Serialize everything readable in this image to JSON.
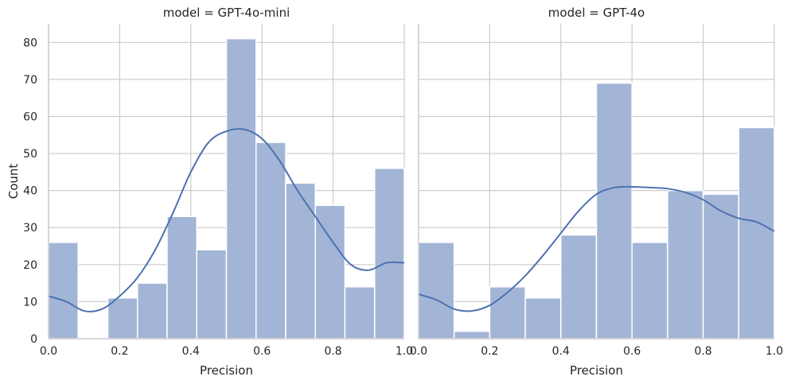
{
  "chart_data": [
    {
      "type": "bar",
      "title": "model = GPT-4o-mini",
      "xlabel": "Precision",
      "ylabel": "Count",
      "xlim": [
        0,
        1.0
      ],
      "ylim": [
        0,
        85
      ],
      "xticks": [
        "0.0",
        "0.2",
        "0.4",
        "0.6",
        "0.8",
        "1.0"
      ],
      "yticks": [
        "0",
        "10",
        "20",
        "30",
        "40",
        "50",
        "60",
        "70",
        "80"
      ],
      "grid": true,
      "bar_color": "#a3b5d6",
      "line_color": "#4c72b0",
      "bins": [
        {
          "x0": 0.0,
          "x1": 0.0833,
          "count": 26
        },
        {
          "x0": 0.0833,
          "x1": 0.1667,
          "count": 0
        },
        {
          "x0": 0.1667,
          "x1": 0.25,
          "count": 11
        },
        {
          "x0": 0.25,
          "x1": 0.3333,
          "count": 15
        },
        {
          "x0": 0.3333,
          "x1": 0.4167,
          "count": 33
        },
        {
          "x0": 0.4167,
          "x1": 0.5,
          "count": 24
        },
        {
          "x0": 0.5,
          "x1": 0.5833,
          "count": 81
        },
        {
          "x0": 0.5833,
          "x1": 0.6667,
          "count": 53
        },
        {
          "x0": 0.6667,
          "x1": 0.75,
          "count": 42
        },
        {
          "x0": 0.75,
          "x1": 0.8333,
          "count": 36
        },
        {
          "x0": 0.8333,
          "x1": 0.9167,
          "count": 14
        },
        {
          "x0": 0.9167,
          "x1": 1.0,
          "count": 46
        }
      ],
      "kde": {
        "x": [
          0.0,
          0.05,
          0.1,
          0.15,
          0.2,
          0.25,
          0.3,
          0.35,
          0.4,
          0.45,
          0.5,
          0.55,
          0.6,
          0.65,
          0.7,
          0.75,
          0.8,
          0.85,
          0.9,
          0.95,
          1.0
        ],
        "y": [
          11.5,
          10,
          7.5,
          8,
          11.5,
          16.5,
          24,
          34,
          45,
          53,
          56,
          56.5,
          54,
          48,
          40,
          33,
          26,
          20,
          18.5,
          20.5,
          20.5
        ]
      }
    },
    {
      "type": "bar",
      "title": "model = GPT-4o",
      "xlabel": "Precision",
      "ylabel": "",
      "xlim": [
        0,
        1.0
      ],
      "ylim": [
        0,
        85
      ],
      "xticks": [
        "0.0",
        "0.2",
        "0.4",
        "0.6",
        "0.8",
        "1.0"
      ],
      "yticks": [],
      "grid": true,
      "bar_color": "#a3b5d6",
      "line_color": "#4c72b0",
      "bins": [
        {
          "x0": 0.0,
          "x1": 0.1,
          "count": 26
        },
        {
          "x0": 0.1,
          "x1": 0.2,
          "count": 2
        },
        {
          "x0": 0.2,
          "x1": 0.3,
          "count": 14
        },
        {
          "x0": 0.3,
          "x1": 0.4,
          "count": 11
        },
        {
          "x0": 0.4,
          "x1": 0.5,
          "count": 28
        },
        {
          "x0": 0.5,
          "x1": 0.6,
          "count": 69
        },
        {
          "x0": 0.6,
          "x1": 0.7,
          "count": 26
        },
        {
          "x0": 0.7,
          "x1": 0.8,
          "count": 40
        },
        {
          "x0": 0.8,
          "x1": 0.9,
          "count": 39
        },
        {
          "x0": 0.9,
          "x1": 1.0,
          "count": 57
        }
      ],
      "kde": {
        "x": [
          0.0,
          0.05,
          0.1,
          0.15,
          0.2,
          0.25,
          0.3,
          0.35,
          0.4,
          0.45,
          0.5,
          0.55,
          0.6,
          0.65,
          0.7,
          0.75,
          0.8,
          0.85,
          0.9,
          0.95,
          1.0
        ],
        "y": [
          12,
          10.5,
          8,
          7.5,
          9,
          12.5,
          17,
          22.5,
          28.5,
          34.5,
          39,
          40.8,
          41,
          40.8,
          40.5,
          39.5,
          37.5,
          34.5,
          32.5,
          31.5,
          29
        ]
      }
    }
  ]
}
